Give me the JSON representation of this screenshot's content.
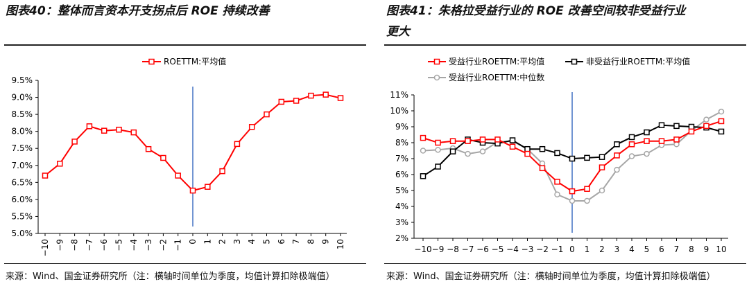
{
  "left": {
    "title": "图表40：整体而言资本开支拐点后 ROE 持续改善",
    "source": "来源：Wind、国金证券研究所（注：横轴时间单位为季度，均值计算扣除极端值）"
  },
  "right": {
    "title_line1": "图表41：朱格拉受益行业的 ROE 改善空间较非受益行业",
    "title_line2": "更大",
    "source": "来源：Wind、国金证券研究所（注：横轴时间单位为季度，均值计算扣除极端值）"
  },
  "colors": {
    "red": "#ff0000",
    "black": "#000000",
    "gray": "#a6a6a6",
    "vline": "#4472c4"
  },
  "chart_data": [
    {
      "type": "line",
      "x": [
        -10,
        -9,
        -8,
        -7,
        -6,
        -5,
        -4,
        -3,
        -2,
        -1,
        0,
        1,
        2,
        3,
        4,
        5,
        6,
        7,
        8,
        9,
        10
      ],
      "series": [
        {
          "name": "ROETTM:平均值",
          "values": [
            6.7,
            7.05,
            7.7,
            8.15,
            8.02,
            8.05,
            7.97,
            7.48,
            7.22,
            6.7,
            6.26,
            6.37,
            6.83,
            7.63,
            8.13,
            8.5,
            8.87,
            8.9,
            9.05,
            9.08,
            8.98
          ]
        }
      ],
      "yticks": [
        "5.0%",
        "5.5%",
        "6.0%",
        "6.5%",
        "7.0%",
        "7.5%",
        "8.0%",
        "8.5%",
        "9.0%",
        "9.5%"
      ],
      "ylim": [
        5.0,
        9.5
      ],
      "xticklabels": [
        "−10",
        "−9",
        "−8",
        "−7",
        "−6",
        "−5",
        "−4",
        "−3",
        "−2",
        "−1",
        "0",
        "1",
        "2",
        "3",
        "4",
        "5",
        "6",
        "7",
        "8",
        "9",
        "10"
      ],
      "legend_position": "top-center"
    },
    {
      "type": "line",
      "x": [
        -10,
        -9,
        -8,
        -7,
        -6,
        -5,
        -4,
        -3,
        -2,
        -1,
        0,
        1,
        2,
        3,
        4,
        5,
        6,
        7,
        8,
        9,
        10
      ],
      "series": [
        {
          "name": "受益行业ROETTM:平均值",
          "color": "#ff0000",
          "values": [
            8.3,
            8.0,
            8.1,
            8.1,
            8.2,
            8.2,
            7.75,
            7.3,
            6.4,
            5.55,
            4.95,
            5.1,
            6.45,
            7.2,
            7.9,
            8.1,
            8.1,
            8.2,
            8.7,
            9.05,
            9.35
          ]
        },
        {
          "name": "非受益行业ROETTM:平均值",
          "color": "#000000",
          "values": [
            5.9,
            6.5,
            7.45,
            8.2,
            8.0,
            7.95,
            8.15,
            7.6,
            7.6,
            7.35,
            7.0,
            7.05,
            7.1,
            7.9,
            8.35,
            8.65,
            9.1,
            9.05,
            9.0,
            8.95,
            8.7
          ]
        },
        {
          "name": "受益行业ROETTM:中位数",
          "color": "#a6a6a6",
          "values": [
            7.5,
            7.55,
            7.65,
            7.3,
            7.45,
            8.05,
            8.1,
            7.6,
            6.7,
            4.75,
            4.35,
            4.35,
            5.0,
            6.3,
            7.15,
            7.3,
            7.85,
            7.9,
            8.75,
            9.45,
            9.95
          ]
        }
      ],
      "yticks": [
        "2%",
        "3%",
        "4%",
        "5%",
        "6%",
        "7%",
        "8%",
        "9%",
        "10%",
        "11%"
      ],
      "ylim": [
        2,
        11
      ],
      "xticklabels": [
        "−10",
        "−9",
        "−8",
        "−7",
        "−6",
        "−5",
        "−4",
        "−3",
        "−2",
        "−1",
        "0",
        "1",
        "2",
        "3",
        "4",
        "5",
        "6",
        "7",
        "8",
        "9",
        "10"
      ],
      "legend_position": "top"
    }
  ]
}
